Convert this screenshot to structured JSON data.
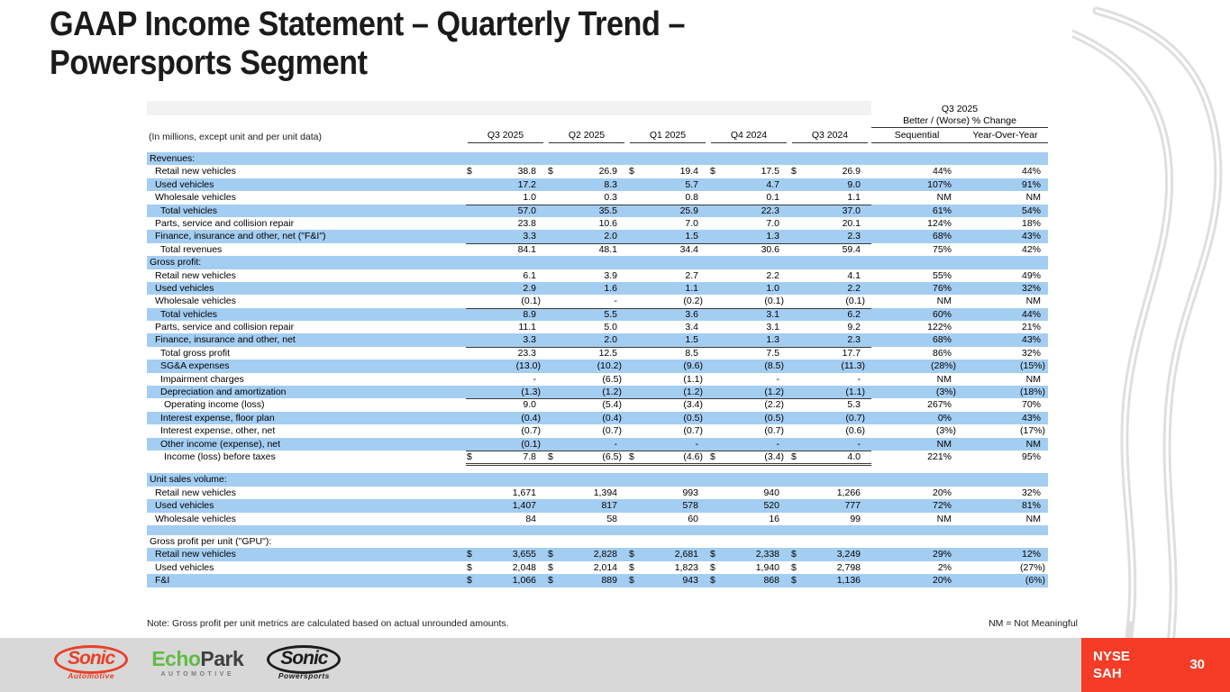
{
  "slide": {
    "title_line1": "GAAP Income Statement – Quarterly Trend –",
    "title_line2": "Powersports Segment",
    "note": "Note: Gross profit per unit metrics are calculated based on actual unrounded amounts.",
    "nm_legend": "NM = Not Meaningful",
    "page_number": "30"
  },
  "ticker": {
    "exchange": "NYSE",
    "symbol": "SAH"
  },
  "logos": {
    "sonic_automotive": {
      "name": "Sonic",
      "sub": "Automotive"
    },
    "echopark": {
      "word1": "Echo",
      "word2": "Park",
      "sub": "AUTOMOTIVE"
    },
    "sonic_powersports": {
      "name": "Sonic",
      "sub": "Powersports"
    }
  },
  "colors": {
    "row_blue": "#a4cdf2",
    "accent_red": "#f43c26",
    "footer_gray": "#d8d8d8",
    "logo_red": "#e8402a",
    "logo_green": "#62bb46"
  },
  "table": {
    "caption": "(In millions, except unit and per unit data)",
    "group_header": {
      "period": "Q3 2025",
      "label": "Better / (Worse) % Change"
    },
    "quarter_columns": [
      "Q3 2025",
      "Q2 2025",
      "Q1 2025",
      "Q4 2024",
      "Q3 2024"
    ],
    "change_columns": [
      "Sequential",
      "Year-Over-Year"
    ],
    "rows": [
      {
        "label": "Revenues:",
        "section": true,
        "bg": "blue"
      },
      {
        "label": "Retail new vehicles",
        "indent": 1,
        "dollar": true,
        "values": [
          "38.8",
          "26.9",
          "19.4",
          "17.5",
          "26.9"
        ],
        "seq": "44%",
        "yoy": "44%",
        "bg": "white"
      },
      {
        "label": "Used vehicles",
        "indent": 1,
        "values": [
          "17.2",
          "8.3",
          "5.7",
          "4.7",
          "9.0"
        ],
        "seq": "107%",
        "yoy": "91%",
        "bg": "blue"
      },
      {
        "label": "Wholesale vehicles",
        "indent": 1,
        "values": [
          "1.0",
          "0.3",
          "0.8",
          "0.1",
          "1.1"
        ],
        "seq": "NM",
        "yoy": "NM",
        "bg": "white",
        "rule": "under"
      },
      {
        "label": "Total vehicles",
        "indent": 2,
        "values": [
          "57.0",
          "35.5",
          "25.9",
          "22.3",
          "37.0"
        ],
        "seq": "61%",
        "yoy": "54%",
        "bg": "blue"
      },
      {
        "label": "Parts, service and collision repair",
        "indent": 1,
        "values": [
          "23.8",
          "10.6",
          "7.0",
          "7.0",
          "20.1"
        ],
        "seq": "124%",
        "yoy": "18%",
        "bg": "white"
      },
      {
        "label": "Finance, insurance and other, net (\"F&I\")",
        "indent": 1,
        "values": [
          "3.3",
          "2.0",
          "1.5",
          "1.3",
          "2.3"
        ],
        "seq": "68%",
        "yoy": "43%",
        "bg": "blue",
        "rule": "under"
      },
      {
        "label": "Total revenues",
        "indent": 2,
        "values": [
          "84.1",
          "48.1",
          "34.4",
          "30.6",
          "59.4"
        ],
        "seq": "75%",
        "yoy": "42%",
        "bg": "white"
      },
      {
        "label": "Gross profit:",
        "section": true,
        "bg": "blue"
      },
      {
        "label": "Retail new vehicles",
        "indent": 1,
        "values": [
          "6.1",
          "3.9",
          "2.7",
          "2.2",
          "4.1"
        ],
        "seq": "55%",
        "yoy": "49%",
        "bg": "white"
      },
      {
        "label": "Used vehicles",
        "indent": 1,
        "values": [
          "2.9",
          "1.6",
          "1.1",
          "1.0",
          "2.2"
        ],
        "seq": "76%",
        "yoy": "32%",
        "bg": "blue"
      },
      {
        "label": "Wholesale vehicles",
        "indent": 1,
        "values": [
          "(0.1)",
          "-",
          "(0.2)",
          "(0.1)",
          "(0.1)"
        ],
        "seq": "NM",
        "yoy": "NM",
        "bg": "white",
        "rule": "under"
      },
      {
        "label": "Total vehicles",
        "indent": 2,
        "values": [
          "8.9",
          "5.5",
          "3.6",
          "3.1",
          "6.2"
        ],
        "seq": "60%",
        "yoy": "44%",
        "bg": "blue"
      },
      {
        "label": "Parts, service and collision repair",
        "indent": 1,
        "values": [
          "11.1",
          "5.0",
          "3.4",
          "3.1",
          "9.2"
        ],
        "seq": "122%",
        "yoy": "21%",
        "bg": "white"
      },
      {
        "label": "Finance, insurance and other, net",
        "indent": 1,
        "values": [
          "3.3",
          "2.0",
          "1.5",
          "1.3",
          "2.3"
        ],
        "seq": "68%",
        "yoy": "43%",
        "bg": "blue",
        "rule": "under"
      },
      {
        "label": "Total gross profit",
        "indent": 2,
        "values": [
          "23.3",
          "12.5",
          "8.5",
          "7.5",
          "17.7"
        ],
        "seq": "86%",
        "yoy": "32%",
        "bg": "white"
      },
      {
        "label": "SG&A expenses",
        "indent": 2,
        "values": [
          "(13.0)",
          "(10.2)",
          "(9.6)",
          "(8.5)",
          "(11.3)"
        ],
        "seq": "(28%)",
        "yoy": "(15%)",
        "bg": "blue"
      },
      {
        "label": "Impairment charges",
        "indent": 2,
        "values": [
          "-",
          "(6.5)",
          "(1.1)",
          "-",
          "-"
        ],
        "seq": "NM",
        "yoy": "NM",
        "bg": "white"
      },
      {
        "label": "Depreciation and amortization",
        "indent": 2,
        "values": [
          "(1.3)",
          "(1.2)",
          "(1.2)",
          "(1.2)",
          "(1.1)"
        ],
        "seq": "(3%)",
        "yoy": "(18%)",
        "bg": "blue",
        "rule": "under"
      },
      {
        "label": "Operating income (loss)",
        "indent": 3,
        "values": [
          "9.0",
          "(5.4)",
          "(3.4)",
          "(2.2)",
          "5.3"
        ],
        "seq": "267%",
        "yoy": "70%",
        "bg": "white"
      },
      {
        "label": "Interest expense, floor plan",
        "indent": 2,
        "values": [
          "(0.4)",
          "(0.4)",
          "(0.5)",
          "(0.5)",
          "(0.7)"
        ],
        "seq": "0%",
        "yoy": "43%",
        "bg": "blue"
      },
      {
        "label": "Interest expense, other, net",
        "indent": 2,
        "values": [
          "(0.7)",
          "(0.7)",
          "(0.7)",
          "(0.7)",
          "(0.6)"
        ],
        "seq": "(3%)",
        "yoy": "(17%)",
        "bg": "white"
      },
      {
        "label": "Other income (expense), net",
        "indent": 2,
        "values": [
          "(0.1)",
          "-",
          "-",
          "-",
          "-"
        ],
        "seq": "NM",
        "yoy": "NM",
        "bg": "blue",
        "rule": "under"
      },
      {
        "label": "Income (loss) before taxes",
        "indent": 3,
        "dollar": true,
        "values": [
          "7.8",
          "(6.5)",
          "(4.6)",
          "(3.4)",
          "4.0"
        ],
        "seq": "221%",
        "yoy": "95%",
        "bg": "white",
        "rule": "double"
      },
      {
        "gap": true,
        "bg": "white"
      },
      {
        "label": "Unit sales volume:",
        "section": true,
        "bg": "blue"
      },
      {
        "label": "Retail new vehicles",
        "indent": 1,
        "values": [
          "1,671",
          "1,394",
          "993",
          "940",
          "1,266"
        ],
        "seq": "20%",
        "yoy": "32%",
        "bg": "white"
      },
      {
        "label": "Used vehicles",
        "indent": 1,
        "values": [
          "1,407",
          "817",
          "578",
          "520",
          "777"
        ],
        "seq": "72%",
        "yoy": "81%",
        "bg": "blue"
      },
      {
        "label": "Wholesale vehicles",
        "indent": 1,
        "values": [
          "84",
          "58",
          "60",
          "16",
          "99"
        ],
        "seq": "NM",
        "yoy": "NM",
        "bg": "white"
      },
      {
        "gap": true,
        "bg": "blue"
      },
      {
        "label": "Gross profit per unit (\"GPU\"):",
        "section": true,
        "bg": "white"
      },
      {
        "label": "Retail new vehicles",
        "indent": 1,
        "dollar": true,
        "values": [
          "3,655",
          "2,828",
          "2,681",
          "2,338",
          "3,249"
        ],
        "seq": "29%",
        "yoy": "12%",
        "bg": "blue"
      },
      {
        "label": "Used vehicles",
        "indent": 1,
        "dollar": true,
        "values": [
          "2,048",
          "2,014",
          "1,823",
          "1,940",
          "2,798"
        ],
        "seq": "2%",
        "yoy": "(27%)",
        "bg": "white"
      },
      {
        "label": "F&I",
        "indent": 1,
        "dollar": true,
        "values": [
          "1,066",
          "889",
          "943",
          "868",
          "1,136"
        ],
        "seq": "20%",
        "yoy": "(6%)",
        "bg": "blue"
      }
    ]
  }
}
